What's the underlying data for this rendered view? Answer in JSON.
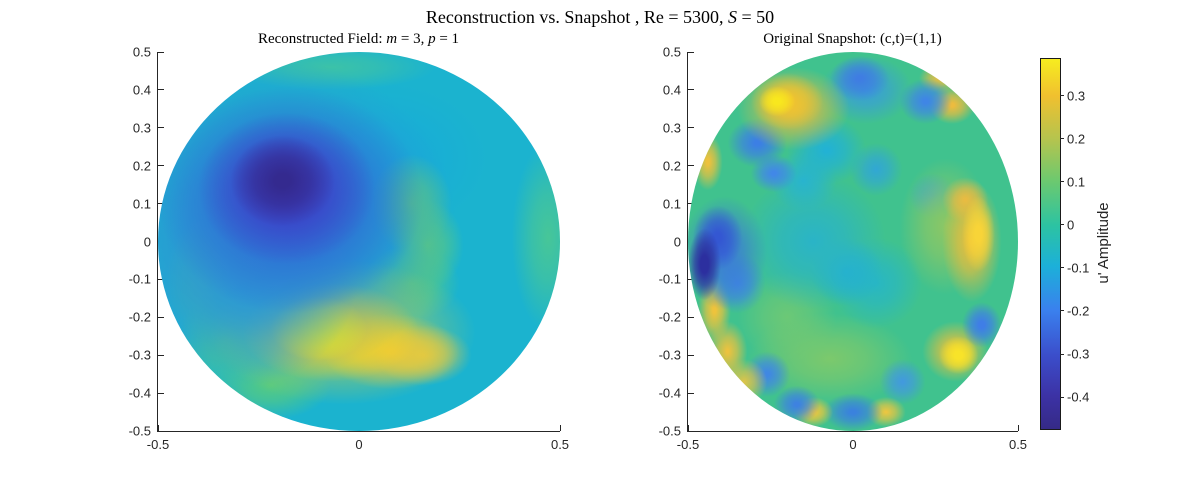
{
  "figure_title": "Reconstruction vs. Snapshot , Re = 5300, S = 50",
  "figure_title_parts": [
    {
      "t": "Reconstruction vs. Snapshot , Re = 5300, ",
      "i": false
    },
    {
      "t": "S",
      "i": true
    },
    {
      "t": " = 50",
      "i": false
    }
  ],
  "chart_data": {
    "type": "heatmap",
    "colormap": "parula",
    "xlim": [
      -0.5,
      0.5
    ],
    "ylim": [
      -0.5,
      0.5
    ],
    "clim": [
      -0.474,
      0.385
    ],
    "grid": false,
    "subplots": [
      {
        "id": "reconstructed",
        "title": "Reconstructed Field: m = 3, p = 1",
        "title_parts": [
          {
            "t": "Reconstructed Field: ",
            "i": false
          },
          {
            "t": "m",
            "i": true
          },
          {
            "t": " = 3, ",
            "i": false
          },
          {
            "t": "p",
            "i": true
          },
          {
            "t": " = 1",
            "i": false
          }
        ],
        "x_tick_labels": [
          "-0.5",
          "0",
          "0.5"
        ],
        "y_tick_labels": [
          "0.5",
          "0.4",
          "0.3",
          "0.2",
          "0.1",
          "0",
          "-0.1",
          "-0.2",
          "-0.3",
          "-0.4",
          "-0.5"
        ],
        "base_color": "#1bb3cf",
        "base_amp": -0.05,
        "features": [
          {
            "x": -0.19,
            "y": 0.16,
            "rx": 0.13,
            "ry": 0.12,
            "amp": -0.45,
            "color": "#342a8f",
            "core": 15
          },
          {
            "x": -0.18,
            "y": 0.14,
            "rx": 0.22,
            "ry": 0.2,
            "amp": -0.35,
            "color": "#3d3fc6",
            "core": 10
          },
          {
            "x": -0.17,
            "y": 0.11,
            "rx": 0.33,
            "ry": 0.3,
            "amp": -0.25,
            "color": "#2f66d5",
            "core": 8
          },
          {
            "x": -0.21,
            "y": 0.06,
            "rx": 0.45,
            "ry": 0.42,
            "amp": -0.12,
            "color": "#2b90d5",
            "core": 5
          },
          {
            "x": -0.28,
            "y": -0.08,
            "rx": 0.28,
            "ry": 0.3,
            "amp": -0.08,
            "color": "#2fa2d3",
            "core": 0
          },
          {
            "x": -0.1,
            "y": -0.23,
            "rx": 0.12,
            "ry": 0.085,
            "amp": 0.38,
            "color": "#f9ef13",
            "core": 20
          },
          {
            "x": -0.07,
            "y": -0.24,
            "rx": 0.22,
            "ry": 0.13,
            "amp": 0.3,
            "color": "#f3d229",
            "core": 10
          },
          {
            "x": 0.08,
            "y": -0.29,
            "rx": 0.17,
            "ry": 0.1,
            "amp": 0.22,
            "color": "#eac93a",
            "core": 5
          },
          {
            "x": 0.16,
            "y": -0.3,
            "rx": 0.12,
            "ry": 0.08,
            "amp": 0.15,
            "color": "#d5c94d",
            "core": 0
          },
          {
            "x": -0.04,
            "y": -0.24,
            "rx": 0.33,
            "ry": 0.19,
            "amp": 0.12,
            "color": "#a4cb5e",
            "core": 0
          },
          {
            "x": -0.38,
            "y": -0.1,
            "rx": 0.1,
            "ry": 0.16,
            "amp": 0.05,
            "color": "#46c894",
            "core": 0
          },
          {
            "x": -0.33,
            "y": -0.26,
            "rx": 0.12,
            "ry": 0.13,
            "amp": 0.06,
            "color": "#4fcb87",
            "core": 0
          },
          {
            "x": -0.22,
            "y": -0.38,
            "rx": 0.15,
            "ry": 0.09,
            "amp": 0.06,
            "color": "#55ca82",
            "core": 0
          },
          {
            "x": 0.13,
            "y": 0.1,
            "rx": 0.1,
            "ry": 0.13,
            "amp": 0.07,
            "color": "#5ecb7d",
            "core": 0
          },
          {
            "x": 0.17,
            "y": -0.01,
            "rx": 0.09,
            "ry": 0.12,
            "amp": 0.07,
            "color": "#5acb81",
            "core": 0
          },
          {
            "x": 0.13,
            "y": -0.11,
            "rx": 0.12,
            "ry": 0.1,
            "amp": 0.06,
            "color": "#54c987",
            "core": 0
          },
          {
            "x": 0.47,
            "y": 0.01,
            "rx": 0.09,
            "ry": 0.25,
            "amp": 0.05,
            "color": "#47c698",
            "core": 0
          },
          {
            "x": -0.07,
            "y": 0.46,
            "rx": 0.26,
            "ry": 0.06,
            "amp": 0.03,
            "color": "#3cc2a8",
            "core": 0
          },
          {
            "x": 0.06,
            "y": 0.22,
            "rx": 0.26,
            "ry": 0.2,
            "amp": -0.06,
            "color": "#17acd8",
            "core": 0
          }
        ]
      },
      {
        "id": "snapshot",
        "title": "Original Snapshot: (c,t)=(1,1)",
        "title_parts": [
          {
            "t": "Original Snapshot: (c,t)=(1,1)",
            "i": false
          }
        ],
        "x_tick_labels": [
          "-0.5",
          "0",
          "0.5"
        ],
        "y_tick_labels": [
          "0.5",
          "0.4",
          "0.3",
          "0.2",
          "0.1",
          "0",
          "-0.1",
          "-0.2",
          "-0.3",
          "-0.4",
          "-0.5"
        ],
        "base_color": "#40c28e",
        "base_amp": 0.02,
        "features": [
          {
            "x": -0.23,
            "y": 0.37,
            "rx": 0.055,
            "ry": 0.04,
            "amp": 0.33,
            "color": "#f8e71e",
            "core": 20
          },
          {
            "x": -0.2,
            "y": 0.37,
            "rx": 0.11,
            "ry": 0.075,
            "amp": 0.27,
            "color": "#f0c32f",
            "core": 15
          },
          {
            "x": -0.18,
            "y": 0.35,
            "rx": 0.17,
            "ry": 0.11,
            "amp": 0.18,
            "color": "#dcbc45",
            "core": 0
          },
          {
            "x": 0.02,
            "y": 0.43,
            "rx": 0.09,
            "ry": 0.06,
            "amp": -0.22,
            "color": "#3f7de2",
            "core": 10
          },
          {
            "x": 0.04,
            "y": 0.4,
            "rx": 0.14,
            "ry": 0.09,
            "amp": -0.12,
            "color": "#399ed8",
            "core": 0
          },
          {
            "x": 0.22,
            "y": 0.37,
            "rx": 0.08,
            "ry": 0.06,
            "amp": -0.2,
            "color": "#3f86e5",
            "core": 10
          },
          {
            "x": 0.3,
            "y": 0.36,
            "rx": 0.07,
            "ry": 0.05,
            "amp": 0.2,
            "color": "#ecbc3f",
            "core": 10
          },
          {
            "x": 0.26,
            "y": 0.43,
            "rx": 0.06,
            "ry": 0.04,
            "amp": 0.15,
            "color": "#e4bd47",
            "core": 0
          },
          {
            "x": -0.29,
            "y": 0.26,
            "rx": 0.09,
            "ry": 0.065,
            "amp": -0.22,
            "color": "#3c7fe4",
            "core": 10
          },
          {
            "x": -0.24,
            "y": 0.18,
            "rx": 0.07,
            "ry": 0.05,
            "amp": -0.2,
            "color": "#4188e7",
            "core": 10
          },
          {
            "x": -0.44,
            "y": 0.21,
            "rx": 0.045,
            "ry": 0.075,
            "amp": 0.2,
            "color": "#edc13d",
            "core": 10
          },
          {
            "x": -0.08,
            "y": 0.24,
            "rx": 0.12,
            "ry": 0.09,
            "amp": -0.1,
            "color": "#22b2d4",
            "core": 5
          },
          {
            "x": -0.15,
            "y": 0.16,
            "rx": 0.1,
            "ry": 0.08,
            "amp": -0.08,
            "color": "#28b4cf",
            "core": 0
          },
          {
            "x": -0.45,
            "y": -0.06,
            "rx": 0.05,
            "ry": 0.095,
            "amp": -0.45,
            "color": "#2c2f9f",
            "core": 25
          },
          {
            "x": -0.41,
            "y": 0.01,
            "rx": 0.075,
            "ry": 0.085,
            "amp": -0.3,
            "color": "#3457d2",
            "core": 15
          },
          {
            "x": -0.39,
            "y": -0.03,
            "rx": 0.13,
            "ry": 0.15,
            "amp": -0.2,
            "color": "#3b79da",
            "core": 0
          },
          {
            "x": -0.35,
            "y": -0.11,
            "rx": 0.085,
            "ry": 0.08,
            "amp": -0.15,
            "color": "#3f8cdf",
            "core": 5
          },
          {
            "x": -0.12,
            "y": 0.0,
            "rx": 0.22,
            "ry": 0.18,
            "amp": -0.05,
            "color": "#2ab4c7",
            "core": 0
          },
          {
            "x": -0.02,
            "y": -0.08,
            "rx": 0.11,
            "ry": 0.09,
            "amp": -0.08,
            "color": "#22b0d3",
            "core": 0
          },
          {
            "x": 0.07,
            "y": -0.11,
            "rx": 0.14,
            "ry": 0.12,
            "amp": -0.04,
            "color": "#28b7c3",
            "core": 0
          },
          {
            "x": 0.38,
            "y": 0.02,
            "rx": 0.05,
            "ry": 0.1,
            "amp": 0.3,
            "color": "#f8d438",
            "core": 20
          },
          {
            "x": 0.36,
            "y": 0.0,
            "rx": 0.09,
            "ry": 0.16,
            "amp": 0.2,
            "color": "#e9bd3c",
            "core": 5
          },
          {
            "x": 0.34,
            "y": 0.11,
            "rx": 0.07,
            "ry": 0.06,
            "amp": 0.18,
            "color": "#e8ba45",
            "core": 5
          },
          {
            "x": 0.28,
            "y": 0.04,
            "rx": 0.14,
            "ry": 0.18,
            "amp": 0.1,
            "color": "#8cc765",
            "core": 0
          },
          {
            "x": 0.39,
            "y": -0.22,
            "rx": 0.06,
            "ry": 0.06,
            "amp": -0.25,
            "color": "#3f7ee6",
            "core": 15
          },
          {
            "x": 0.32,
            "y": -0.3,
            "rx": 0.06,
            "ry": 0.05,
            "amp": 0.32,
            "color": "#f8e329",
            "core": 20
          },
          {
            "x": 0.31,
            "y": -0.29,
            "rx": 0.1,
            "ry": 0.08,
            "amp": 0.2,
            "color": "#ecc03a",
            "core": 0
          },
          {
            "x": -0.42,
            "y": -0.18,
            "rx": 0.05,
            "ry": 0.09,
            "amp": 0.22,
            "color": "#eec33c",
            "core": 10
          },
          {
            "x": -0.38,
            "y": -0.29,
            "rx": 0.06,
            "ry": 0.08,
            "amp": 0.2,
            "color": "#ecc23f",
            "core": 5
          },
          {
            "x": -0.33,
            "y": -0.37,
            "rx": 0.07,
            "ry": 0.06,
            "amp": 0.12,
            "color": "#ddc44a",
            "core": 0
          },
          {
            "x": -0.26,
            "y": -0.35,
            "rx": 0.07,
            "ry": 0.06,
            "amp": -0.2,
            "color": "#4088e2",
            "core": 10
          },
          {
            "x": -0.17,
            "y": -0.43,
            "rx": 0.07,
            "ry": 0.05,
            "amp": -0.2,
            "color": "#3e82e0",
            "core": 10
          },
          {
            "x": -0.12,
            "y": -0.45,
            "rx": 0.06,
            "ry": 0.04,
            "amp": 0.18,
            "color": "#ecc73e",
            "core": 10
          },
          {
            "x": 0.0,
            "y": -0.45,
            "rx": 0.09,
            "ry": 0.05,
            "amp": -0.22,
            "color": "#3a82dd",
            "core": 10
          },
          {
            "x": 0.1,
            "y": -0.45,
            "rx": 0.06,
            "ry": 0.04,
            "amp": 0.16,
            "color": "#eac642",
            "core": 5
          },
          {
            "x": 0.15,
            "y": -0.37,
            "rx": 0.07,
            "ry": 0.06,
            "amp": -0.12,
            "color": "#429add",
            "core": 5
          },
          {
            "x": -0.07,
            "y": -0.31,
            "rx": 0.25,
            "ry": 0.12,
            "amp": 0.08,
            "color": "#7cc96c",
            "core": 0
          },
          {
            "x": -0.2,
            "y": -0.2,
            "rx": 0.15,
            "ry": 0.12,
            "amp": 0.06,
            "color": "#6cc876",
            "core": 0
          },
          {
            "x": 0.07,
            "y": 0.19,
            "rx": 0.08,
            "ry": 0.07,
            "amp": -0.08,
            "color": "#31a7d4",
            "core": 0
          },
          {
            "x": 0.24,
            "y": 0.12,
            "rx": 0.07,
            "ry": 0.06,
            "amp": -0.06,
            "color": "#35a3d6",
            "core": 0
          }
        ]
      }
    ],
    "colorbar": {
      "label": "u' Amplitude",
      "vmin": -0.474,
      "vmax": 0.385,
      "tick_values": [
        0.3,
        0.2,
        0.1,
        0,
        -0.1,
        -0.2,
        -0.3,
        -0.4
      ],
      "tick_labels": [
        "0.3",
        "0.2",
        "0.1",
        "0",
        "-0.1",
        "-0.2",
        "-0.3",
        "-0.4"
      ],
      "gradient": [
        {
          "p": 0.0,
          "c": "#352a87"
        },
        {
          "p": 0.09,
          "c": "#3c32a5"
        },
        {
          "p": 0.2,
          "c": "#3b4ecb"
        },
        {
          "p": 0.32,
          "c": "#3a80ee"
        },
        {
          "p": 0.44,
          "c": "#1cb0d9"
        },
        {
          "p": 0.55,
          "c": "#2cc3a2"
        },
        {
          "p": 0.67,
          "c": "#6cc96f"
        },
        {
          "p": 0.78,
          "c": "#b3c44f"
        },
        {
          "p": 0.9,
          "c": "#f0c02f"
        },
        {
          "p": 1.0,
          "c": "#f6ed1f"
        }
      ]
    }
  }
}
